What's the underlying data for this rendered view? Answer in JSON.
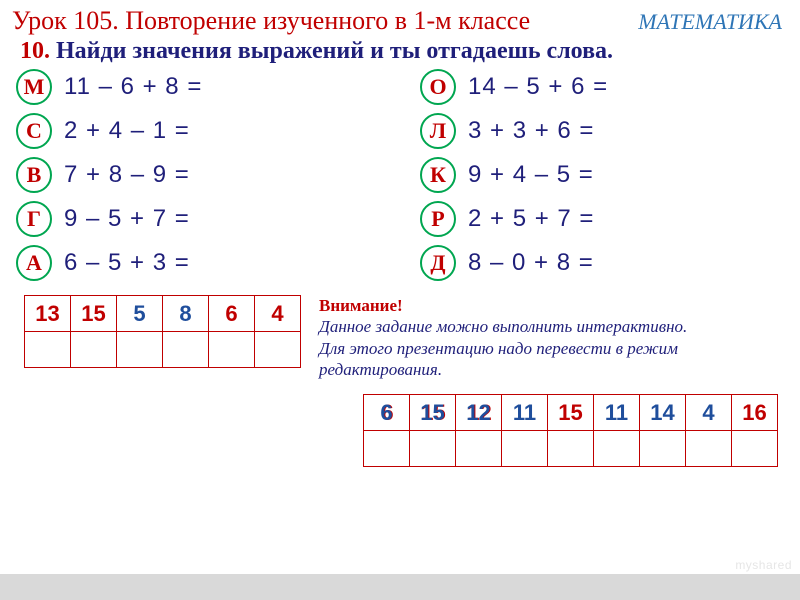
{
  "header": {
    "lesson": "Урок 105. Повторение изученного в 1-м классе",
    "subject": "МАТЕМАТИКА"
  },
  "task": {
    "number": "10.",
    "text": "Найди значения выражений и ты отгадаешь слова."
  },
  "left": [
    {
      "letter": "М",
      "expr": "11  –  6  +  8  ="
    },
    {
      "letter": "С",
      "expr": "2  +  4  –  1  ="
    },
    {
      "letter": "В",
      "expr": "7  +  8  –  9  ="
    },
    {
      "letter": "Г",
      "expr": "9  –  5  +  7  ="
    },
    {
      "letter": "А",
      "expr": "6  –  5  +  3  ="
    }
  ],
  "right": [
    {
      "letter": "О",
      "expr": "14  –  5  +  6  ="
    },
    {
      "letter": "Л",
      "expr": "3  +  3  +  6  ="
    },
    {
      "letter": "К",
      "expr": "9  +  4  –  5  ="
    },
    {
      "letter": "Р",
      "expr": "2  +  5  +  7  ="
    },
    {
      "letter": "Д",
      "expr": "8  –  0  +  8  ="
    }
  ],
  "table1": {
    "cells": [
      {
        "v": "13",
        "c": "c-red"
      },
      {
        "v": "15",
        "c": "c-red"
      },
      {
        "v": "5",
        "c": "c-blue"
      },
      {
        "v": "8",
        "c": "c-blue"
      },
      {
        "v": "6",
        "c": "c-red"
      },
      {
        "v": "4",
        "c": "c-red"
      }
    ],
    "cols": 6
  },
  "note": {
    "attn": "Внимание!",
    "body": "Данное задание можно выполнить интерактивно. Для этого презентацию надо перевести в режим редактирования."
  },
  "table2": {
    "cells": [
      {
        "v": "6",
        "dual": true
      },
      {
        "v": "15",
        "dual": true
      },
      {
        "v": "12",
        "dual": true
      },
      {
        "v": "11",
        "c": "c-blue"
      },
      {
        "v": "15",
        "c": "c-red"
      },
      {
        "v": "11",
        "c": "c-blue"
      },
      {
        "v": "14",
        "c": "c-blue"
      },
      {
        "v": "4",
        "c": "c-blue"
      },
      {
        "v": "16",
        "c": "c-red"
      }
    ],
    "cols": 9
  },
  "watermark": "myshared"
}
